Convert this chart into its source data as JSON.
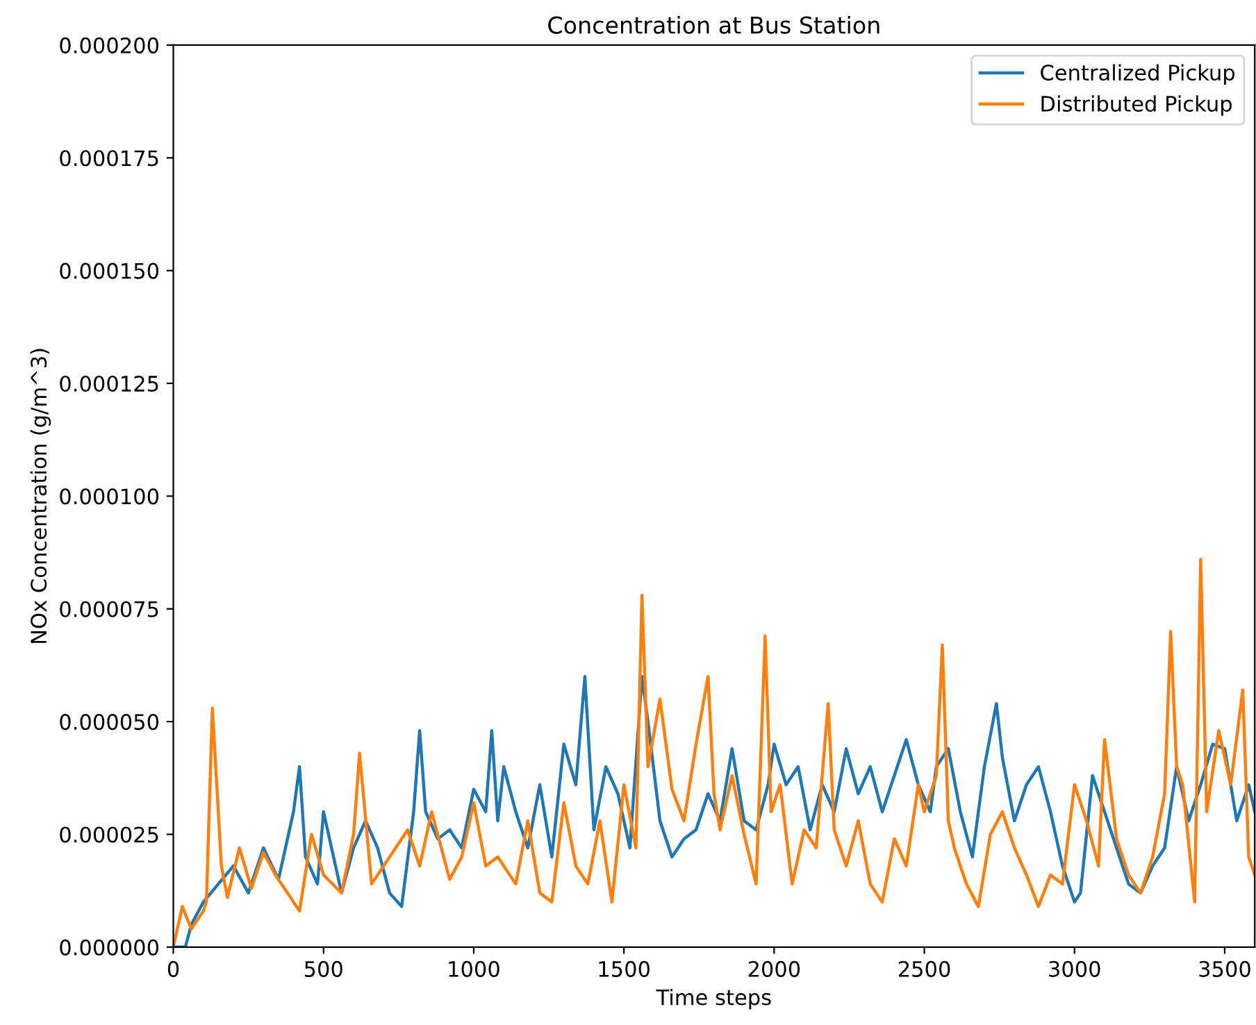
{
  "chart_data": {
    "type": "line",
    "title": "Concentration at Bus Station",
    "xlabel": "Time steps",
    "ylabel": "NOx Concentration (g/m^3)",
    "xlim": [
      0,
      3600
    ],
    "xticks": [
      0,
      500,
      1000,
      1500,
      2000,
      2500,
      3000,
      3500
    ],
    "ylim": [
      0,
      0.0002
    ],
    "yticks": [
      {
        "value": 0,
        "label": "0.000000"
      },
      {
        "value": 2.5e-05,
        "label": "0.000025"
      },
      {
        "value": 5e-05,
        "label": "0.000050"
      },
      {
        "value": 7.5e-05,
        "label": "0.000075"
      },
      {
        "value": 0.0001,
        "label": "0.000100"
      },
      {
        "value": 0.000125,
        "label": "0.000125"
      },
      {
        "value": 0.00015,
        "label": "0.000150"
      },
      {
        "value": 0.000175,
        "label": "0.000175"
      },
      {
        "value": 0.0002,
        "label": "0.000200"
      }
    ],
    "legend": "top right",
    "grid": false,
    "series": [
      {
        "name": "Centralized Pickup",
        "color": "#1f77b4",
        "x": [
          0,
          40,
          60,
          100,
          150,
          200,
          250,
          300,
          350,
          400,
          420,
          440,
          480,
          500,
          540,
          560,
          600,
          640,
          680,
          720,
          760,
          800,
          820,
          840,
          880,
          920,
          960,
          1000,
          1040,
          1060,
          1080,
          1100,
          1140,
          1180,
          1220,
          1260,
          1300,
          1340,
          1370,
          1400,
          1440,
          1480,
          1520,
          1560,
          1580,
          1620,
          1660,
          1700,
          1740,
          1780,
          1820,
          1860,
          1900,
          1940,
          1980,
          2000,
          2040,
          2080,
          2120,
          2160,
          2200,
          2240,
          2280,
          2320,
          2360,
          2400,
          2440,
          2480,
          2520,
          2540,
          2580,
          2620,
          2660,
          2700,
          2740,
          2760,
          2800,
          2840,
          2880,
          2920,
          2960,
          3000,
          3020,
          3060,
          3100,
          3140,
          3180,
          3220,
          3260,
          3300,
          3340,
          3380,
          3420,
          3460,
          3500,
          3540,
          3580,
          3600
        ],
        "values": [
          0,
          0,
          5e-06,
          1e-05,
          1.4e-05,
          1.8e-05,
          1.2e-05,
          2.2e-05,
          1.5e-05,
          3e-05,
          4e-05,
          2e-05,
          1.4e-05,
          3e-05,
          1.8e-05,
          1.2e-05,
          2.2e-05,
          2.8e-05,
          2.2e-05,
          1.2e-05,
          9e-06,
          3e-05,
          4.8e-05,
          3e-05,
          2.4e-05,
          2.6e-05,
          2.2e-05,
          3.5e-05,
          3e-05,
          4.8e-05,
          2.8e-05,
          4e-05,
          3e-05,
          2.2e-05,
          3.6e-05,
          2e-05,
          4.5e-05,
          3.6e-05,
          6e-05,
          2.6e-05,
          4e-05,
          3.4e-05,
          2.2e-05,
          6e-05,
          5e-05,
          2.8e-05,
          2e-05,
          2.4e-05,
          2.6e-05,
          3.4e-05,
          2.8e-05,
          4.4e-05,
          2.8e-05,
          2.6e-05,
          3.6e-05,
          4.5e-05,
          3.6e-05,
          4e-05,
          2.6e-05,
          3.6e-05,
          3e-05,
          4.4e-05,
          3.4e-05,
          4e-05,
          3e-05,
          3.8e-05,
          4.6e-05,
          3.6e-05,
          3e-05,
          4e-05,
          4.4e-05,
          3e-05,
          2e-05,
          4e-05,
          5.4e-05,
          4.2e-05,
          2.8e-05,
          3.6e-05,
          4e-05,
          3e-05,
          1.8e-05,
          1e-05,
          1.2e-05,
          3.8e-05,
          3e-05,
          2.2e-05,
          1.4e-05,
          1.2e-05,
          1.8e-05,
          2.2e-05,
          4e-05,
          2.8e-05,
          3.6e-05,
          4.5e-05,
          4.4e-05,
          2.8e-05,
          3.6e-05,
          3e-05
        ]
      },
      {
        "name": "Distributed Pickup",
        "color": "#ff7f0e",
        "x": [
          0,
          30,
          60,
          100,
          110,
          130,
          160,
          180,
          220,
          260,
          300,
          340,
          380,
          420,
          460,
          500,
          560,
          600,
          620,
          660,
          700,
          740,
          780,
          820,
          860,
          920,
          960,
          1000,
          1040,
          1080,
          1140,
          1180,
          1220,
          1260,
          1300,
          1340,
          1380,
          1420,
          1460,
          1500,
          1540,
          1560,
          1580,
          1620,
          1660,
          1700,
          1740,
          1780,
          1800,
          1820,
          1860,
          1900,
          1940,
          1970,
          1990,
          2020,
          2060,
          2100,
          2140,
          2180,
          2200,
          2240,
          2280,
          2320,
          2360,
          2400,
          2440,
          2480,
          2500,
          2540,
          2560,
          2580,
          2600,
          2640,
          2680,
          2720,
          2760,
          2800,
          2840,
          2880,
          2920,
          2960,
          3000,
          3040,
          3080,
          3100,
          3140,
          3180,
          3220,
          3260,
          3300,
          3320,
          3340,
          3360,
          3400,
          3420,
          3440,
          3480,
          3520,
          3560,
          3580,
          3600
        ],
        "values": [
          0,
          9e-06,
          4e-06,
          8e-06,
          1e-05,
          5.3e-05,
          1.8e-05,
          1.1e-05,
          2.2e-05,
          1.3e-05,
          2.1e-05,
          1.6e-05,
          1.2e-05,
          8e-06,
          2.5e-05,
          1.6e-05,
          1.2e-05,
          2.5e-05,
          4.3e-05,
          1.4e-05,
          1.8e-05,
          2.2e-05,
          2.6e-05,
          1.8e-05,
          3e-05,
          1.5e-05,
          2e-05,
          3.2e-05,
          1.8e-05,
          2e-05,
          1.4e-05,
          2.8e-05,
          1.2e-05,
          1e-05,
          3.2e-05,
          1.8e-05,
          1.4e-05,
          2.8e-05,
          1e-05,
          3.6e-05,
          2.2e-05,
          7.8e-05,
          4e-05,
          5.5e-05,
          3.5e-05,
          2.8e-05,
          4.5e-05,
          6e-05,
          3.4e-05,
          2.6e-05,
          3.8e-05,
          2.5e-05,
          1.4e-05,
          6.9e-05,
          3e-05,
          3.6e-05,
          1.4e-05,
          2.6e-05,
          2.2e-05,
          5.4e-05,
          2.6e-05,
          1.8e-05,
          2.8e-05,
          1.4e-05,
          1e-05,
          2.4e-05,
          1.8e-05,
          3.6e-05,
          3e-05,
          3.8e-05,
          6.7e-05,
          2.8e-05,
          2.2e-05,
          1.4e-05,
          9e-06,
          2.5e-05,
          3e-05,
          2.2e-05,
          1.6e-05,
          9e-06,
          1.6e-05,
          1.4e-05,
          3.6e-05,
          2.8e-05,
          1.8e-05,
          4.6e-05,
          2.4e-05,
          1.6e-05,
          1.2e-05,
          2e-05,
          3.4e-05,
          7e-05,
          4e-05,
          3.6e-05,
          1e-05,
          8.6e-05,
          3e-05,
          4.8e-05,
          3.6e-05,
          5.7e-05,
          2e-05,
          1.6e-05
        ]
      }
    ]
  }
}
